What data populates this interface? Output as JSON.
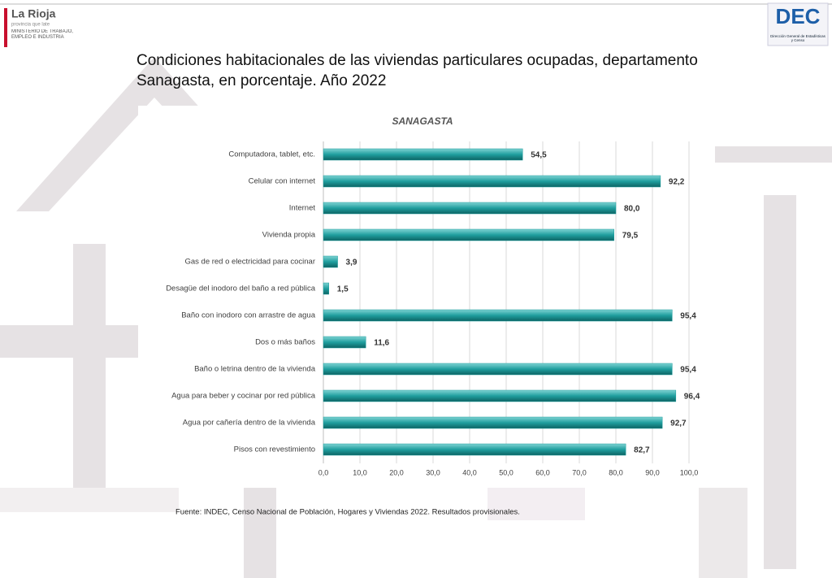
{
  "logos": {
    "province": "La Rioja",
    "province_tagline": "provincia que late",
    "ministry": "MINISTERIO DE TRABAJO, EMPLEO E INDUSTRIA",
    "dec": "DEC",
    "dec_name": "Dirección General de Estadísticas y Censo"
  },
  "chart_data": {
    "type": "hbar",
    "title": "Condiciones habitacionales de las viviendas particulares ocupadas, departamento Sanagasta, en porcentaje. Año 2022",
    "subtitle": "SANAGASTA",
    "source": "Fuente: INDEC, Censo Nacional de Población, Hogares y Viviendas 2022. Resultados provisionales.",
    "categories": [
      "Computadora, tablet, etc.",
      "Celular con internet",
      "Internet",
      "Vivienda propia",
      "Gas de red o electricidad para cocinar",
      "Desagüe del inodoro del baño a red pública",
      "Baño con inodoro con arrastre de agua",
      "Dos o más baños",
      "Baño o letrina dentro de la vivienda",
      "Agua para beber y cocinar por red pública",
      "Agua por cañería dentro de la vivienda",
      "Pisos con revestimiento"
    ],
    "values": [
      54.5,
      92.2,
      80.0,
      79.5,
      3.9,
      1.5,
      95.4,
      11.6,
      95.4,
      96.4,
      92.7,
      82.7
    ],
    "value_labels": [
      "54,5",
      "92,2",
      "80,0",
      "79,5",
      "3,9",
      "1,5",
      "95,4",
      "11,6",
      "95,4",
      "96,4",
      "92,7",
      "82,7"
    ],
    "color": "#1f9e9e",
    "xlim": [
      0,
      100
    ],
    "xticks": [
      {
        "value": 0,
        "label": "0,0"
      },
      {
        "value": 10,
        "label": "10,0"
      },
      {
        "value": 20,
        "label": "20,0"
      },
      {
        "value": 30,
        "label": "30,0"
      },
      {
        "value": 40,
        "label": "40,0"
      },
      {
        "value": 50,
        "label": "50,0"
      },
      {
        "value": 60,
        "label": "60,0"
      },
      {
        "value": 70,
        "label": "70,0"
      },
      {
        "value": 80,
        "label": "80,0"
      },
      {
        "value": 90,
        "label": "90,0"
      },
      {
        "value": 100,
        "label": "100,0"
      }
    ],
    "grid": true
  }
}
